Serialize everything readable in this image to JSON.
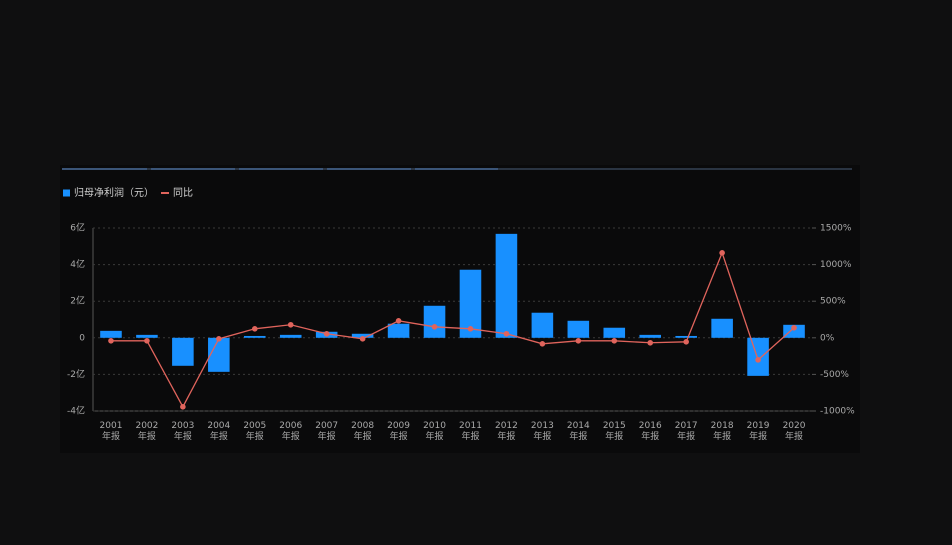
{
  "chart_data": {
    "type": "bar",
    "legend": "top-left",
    "grid": true,
    "categories": [
      "2001\n年报",
      "2002\n年报",
      "2003\n年报",
      "2004\n年报",
      "2005\n年报",
      "2006\n年报",
      "2007\n年报",
      "2008\n年报",
      "2009\n年报",
      "2010\n年报",
      "2011\n年报",
      "2012\n年报",
      "2013\n年报",
      "2014\n年报",
      "2015\n年报",
      "2016\n年报",
      "2017\n年报",
      "2018\n年报",
      "2019\n年报",
      "2020\n年报"
    ],
    "series": [
      {
        "name": "归母净利润（元）",
        "type": "bar",
        "color": "#1890ff",
        "values": [
          0.38,
          0.16,
          -1.53,
          -1.86,
          0.1,
          0.16,
          0.33,
          0.22,
          0.77,
          1.75,
          3.72,
          5.68,
          1.37,
          0.93,
          0.55,
          0.16,
          0.1,
          1.04,
          -2.08,
          0.71
        ]
      },
      {
        "name": "同比",
        "type": "line",
        "color": "#e0645c",
        "axis": "y2",
        "values": [
          -41,
          -41,
          -943,
          -14,
          123,
          178,
          55,
          -14,
          232,
          150,
          123,
          55,
          -82,
          -41,
          -41,
          -68,
          -55,
          1161,
          -301,
          137
        ]
      }
    ],
    "ylim": [
      -4,
      6
    ],
    "yticks": [
      {
        "value": -4,
        "label": "-4亿"
      },
      {
        "value": -2,
        "label": "-2亿"
      },
      0,
      {
        "value": 2,
        "label": "2亿"
      },
      {
        "value": 4,
        "label": "4亿"
      },
      {
        "value": 6,
        "label": "6亿"
      }
    ],
    "y2lim": [
      -1000,
      1500
    ],
    "y2ticks": [
      {
        "value": -1000,
        "label": "-1000%"
      },
      {
        "value": -500,
        "label": "-500%"
      },
      {
        "value": 0,
        "label": "0%"
      },
      {
        "value": 500,
        "label": "500%"
      },
      {
        "value": 1000,
        "label": "1000%"
      },
      {
        "value": 1500,
        "label": "1500%"
      }
    ]
  }
}
